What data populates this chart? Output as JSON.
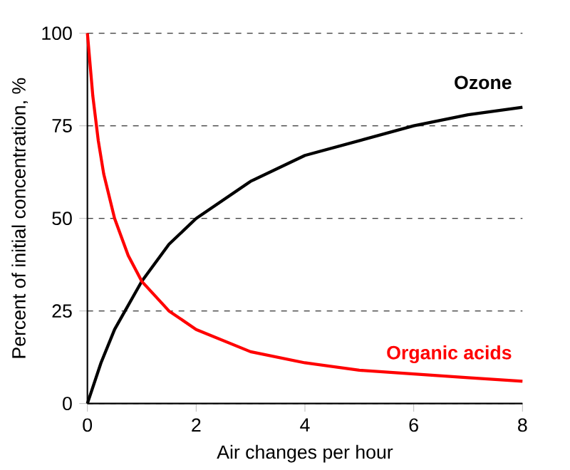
{
  "chart_data": {
    "type": "line",
    "xlabel": "Air changes per hour",
    "ylabel": "Percent of initial concentration, %",
    "xlim": [
      0,
      8
    ],
    "ylim": [
      0,
      100
    ],
    "xticks": [
      0,
      2,
      4,
      6,
      8
    ],
    "yticks": [
      0,
      25,
      50,
      75,
      100
    ],
    "grid": "y",
    "legend": false,
    "marker": "none",
    "line_style": "solid",
    "series": [
      {
        "name": "Ozone",
        "color": "#000000",
        "x": [
          0,
          0.25,
          0.5,
          1,
          1.5,
          2,
          3,
          4,
          5,
          6,
          7,
          8
        ],
        "values": [
          0,
          11,
          20,
          33,
          43,
          50,
          60,
          67,
          71,
          75,
          78,
          80
        ]
      },
      {
        "name": "Organic acids",
        "color": "#ff0000",
        "x": [
          0,
          0.1,
          0.2,
          0.3,
          0.5,
          0.75,
          1,
          1.5,
          2,
          3,
          4,
          5,
          6,
          7,
          8
        ],
        "values": [
          100,
          83,
          71,
          62,
          50,
          40,
          33,
          25,
          20,
          14,
          11,
          9,
          8,
          7,
          6
        ]
      }
    ]
  }
}
